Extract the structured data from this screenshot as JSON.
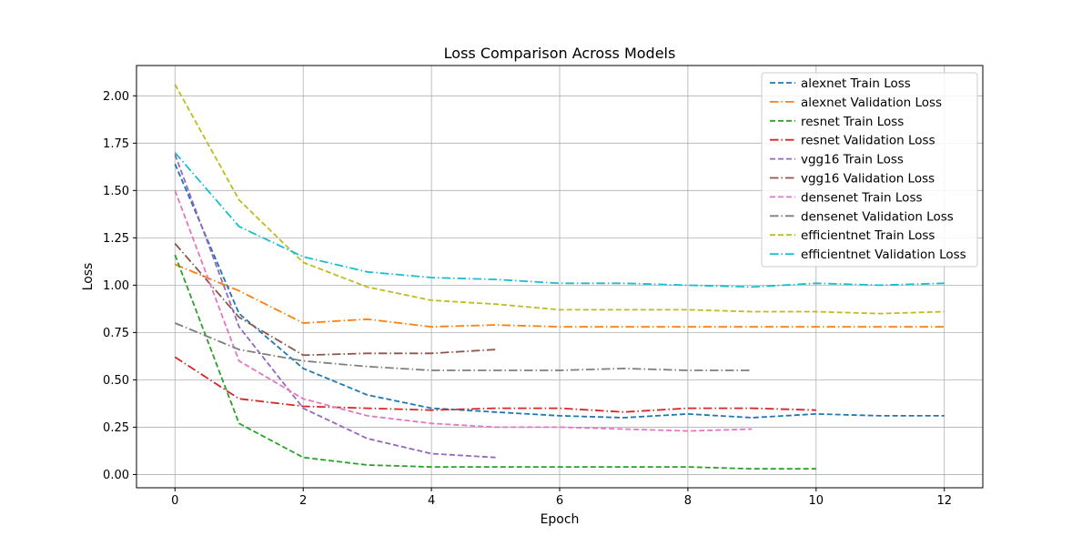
{
  "chart_data": {
    "type": "line",
    "title": "Loss Comparison Across Models",
    "xlabel": "Epoch",
    "ylabel": "Loss",
    "xlim": [
      -0.6,
      12.6
    ],
    "ylim": [
      -0.07,
      2.16
    ],
    "xticks": [
      0,
      2,
      4,
      6,
      8,
      10,
      12
    ],
    "yticks": [
      0.0,
      0.25,
      0.5,
      0.75,
      1.0,
      1.25,
      1.5,
      1.75,
      2.0
    ],
    "ytick_labels": [
      "0.00",
      "0.25",
      "0.50",
      "0.75",
      "1.00",
      "1.25",
      "1.50",
      "1.75",
      "2.00"
    ],
    "grid": true,
    "legend_position": "top-right",
    "series": [
      {
        "name": "alexnet Train Loss",
        "color": "#1f77b4",
        "style": "dashed",
        "x": [
          0,
          1,
          2,
          3,
          4,
          5,
          6,
          7,
          8,
          9,
          10,
          11,
          12
        ],
        "y": [
          1.64,
          0.85,
          0.56,
          0.42,
          0.35,
          0.33,
          0.31,
          0.3,
          0.32,
          0.3,
          0.32,
          0.31,
          0.31
        ]
      },
      {
        "name": "alexnet Validation Loss",
        "color": "#ff7f0e",
        "style": "dashdot",
        "x": [
          0,
          1,
          2,
          3,
          4,
          5,
          6,
          7,
          8,
          9,
          10,
          11,
          12
        ],
        "y": [
          1.11,
          0.97,
          0.8,
          0.82,
          0.78,
          0.79,
          0.78,
          0.78,
          0.78,
          0.78,
          0.78,
          0.78,
          0.78
        ]
      },
      {
        "name": "resnet Train Loss",
        "color": "#2ca02c",
        "style": "dashed",
        "x": [
          0,
          1,
          2,
          3,
          4,
          5,
          6,
          7,
          8,
          9,
          10
        ],
        "y": [
          1.16,
          0.27,
          0.09,
          0.05,
          0.04,
          0.04,
          0.04,
          0.04,
          0.04,
          0.03,
          0.03
        ]
      },
      {
        "name": "resnet Validation Loss",
        "color": "#d62728",
        "style": "dashdot",
        "x": [
          0,
          1,
          2,
          3,
          4,
          5,
          6,
          7,
          8,
          9,
          10
        ],
        "y": [
          0.62,
          0.4,
          0.36,
          0.35,
          0.34,
          0.35,
          0.35,
          0.33,
          0.35,
          0.35,
          0.34
        ]
      },
      {
        "name": "vgg16 Train Loss",
        "color": "#9467bd",
        "style": "dashed",
        "x": [
          0,
          1,
          2,
          3,
          4,
          5
        ],
        "y": [
          1.69,
          0.78,
          0.35,
          0.19,
          0.11,
          0.09
        ]
      },
      {
        "name": "vgg16 Validation Loss",
        "color": "#8c564b",
        "style": "dashdot",
        "x": [
          0,
          1,
          2,
          3,
          4,
          5
        ],
        "y": [
          1.22,
          0.83,
          0.63,
          0.64,
          0.64,
          0.66
        ]
      },
      {
        "name": "densenet Train Loss",
        "color": "#e377c2",
        "style": "dashed",
        "x": [
          0,
          1,
          2,
          3,
          4,
          5,
          6,
          7,
          8,
          9
        ],
        "y": [
          1.5,
          0.6,
          0.4,
          0.31,
          0.27,
          0.25,
          0.25,
          0.24,
          0.23,
          0.24
        ]
      },
      {
        "name": "densenet Validation Loss",
        "color": "#7f7f7f",
        "style": "dashdot",
        "x": [
          0,
          1,
          2,
          3,
          4,
          5,
          6,
          7,
          8,
          9
        ],
        "y": [
          0.8,
          0.66,
          0.6,
          0.57,
          0.55,
          0.55,
          0.55,
          0.56,
          0.55,
          0.55
        ]
      },
      {
        "name": "efficientnet Train Loss",
        "color": "#bcbd22",
        "style": "dashed",
        "x": [
          0,
          1,
          2,
          3,
          4,
          5,
          6,
          7,
          8,
          9,
          10,
          11,
          12
        ],
        "y": [
          2.06,
          1.45,
          1.12,
          0.99,
          0.92,
          0.9,
          0.87,
          0.87,
          0.87,
          0.86,
          0.86,
          0.85,
          0.86
        ]
      },
      {
        "name": "efficientnet Validation Loss",
        "color": "#17becf",
        "style": "dashdot",
        "x": [
          0,
          1,
          2,
          3,
          4,
          5,
          6,
          7,
          8,
          9,
          10,
          11,
          12
        ],
        "y": [
          1.7,
          1.31,
          1.15,
          1.07,
          1.04,
          1.03,
          1.01,
          1.01,
          1.0,
          0.99,
          1.01,
          1.0,
          1.01
        ]
      }
    ]
  }
}
